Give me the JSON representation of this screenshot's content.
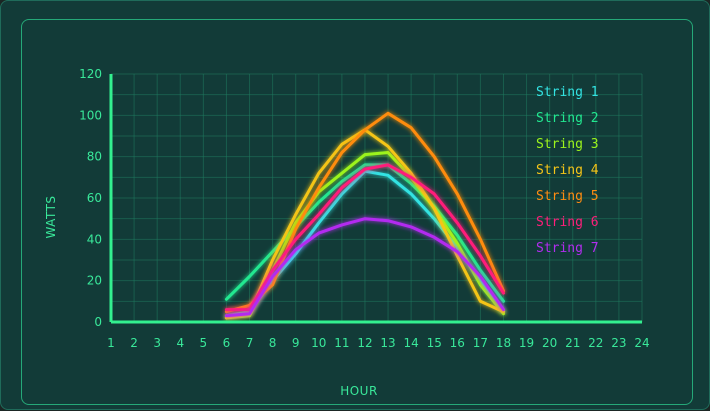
{
  "chart_data": {
    "type": "line",
    "xlabel": "HOUR",
    "ylabel": "WATTS",
    "xlim": [
      1,
      24
    ],
    "ylim": [
      0,
      120
    ],
    "x_ticks": [
      "1",
      "2",
      "3",
      "4",
      "5",
      "6",
      "7",
      "8",
      "9",
      "10",
      "11",
      "12",
      "13",
      "14",
      "15",
      "16",
      "17",
      "18",
      "19",
      "20",
      "21",
      "22",
      "23",
      "24"
    ],
    "y_ticks": [
      "0",
      "20",
      "40",
      "60",
      "80",
      "100",
      "120"
    ],
    "grid": true,
    "legend_position": "top-right",
    "x": [
      6,
      7,
      8,
      9,
      10,
      11,
      12,
      13,
      14,
      15,
      16,
      17,
      18
    ],
    "series": [
      {
        "name": "String 1",
        "color": "#33e3e3",
        "values": [
          3,
          5,
          20,
          33,
          48,
          62,
          73,
          71,
          62,
          50,
          36,
          20,
          5
        ]
      },
      {
        "name": "String 2",
        "color": "#22e890",
        "values": [
          11,
          22,
          34,
          46,
          58,
          68,
          76,
          76,
          67,
          56,
          42,
          25,
          10
        ]
      },
      {
        "name": "String 3",
        "color": "#9cf41c",
        "values": [
          2,
          3,
          25,
          48,
          63,
          72,
          81,
          82,
          70,
          55,
          38,
          18,
          4
        ]
      },
      {
        "name": "String 4",
        "color": "#f5c518",
        "values": [
          2,
          4,
          30,
          52,
          72,
          86,
          93,
          85,
          72,
          55,
          32,
          10,
          5
        ]
      },
      {
        "name": "String 5",
        "color": "#ff8c11",
        "values": [
          5,
          8,
          18,
          45,
          65,
          82,
          93,
          101,
          94,
          80,
          62,
          40,
          15
        ]
      },
      {
        "name": "String 6",
        "color": "#ff1f7a",
        "values": [
          6,
          6,
          25,
          40,
          52,
          65,
          74,
          76,
          70,
          62,
          48,
          32,
          14
        ]
      },
      {
        "name": "String 7",
        "color": "#b32cf0",
        "values": [
          3,
          4,
          22,
          35,
          43,
          47,
          50,
          49,
          46,
          41,
          34,
          22,
          6
        ]
      }
    ]
  }
}
